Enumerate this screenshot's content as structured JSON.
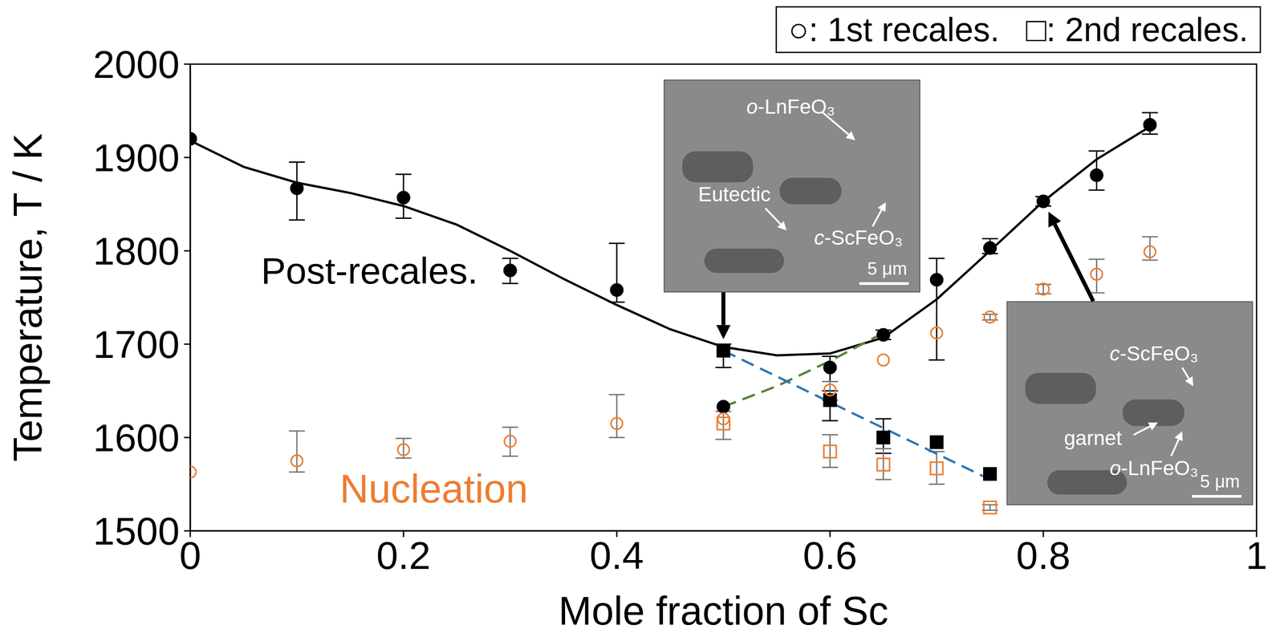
{
  "chart_data": {
    "type": "scatter",
    "x_label": "Mole fraction of Sc",
    "y_label": "Temperature, T / K",
    "xlim": [
      0,
      1
    ],
    "ylim": [
      1500,
      2000
    ],
    "xticks": [
      0,
      0.2,
      0.4,
      0.6,
      0.8,
      1
    ],
    "yticks": [
      1500,
      1600,
      1700,
      1800,
      1900,
      2000
    ],
    "grid": false,
    "legend": "top right",
    "legend_entries": [
      "○: 1st recales.",
      "□: 2nd recales."
    ],
    "annotations": [
      {
        "text": "Post-recales.",
        "color": "#000000"
      },
      {
        "text": "Nucleation",
        "color": "#ED7D31"
      }
    ],
    "insets": [
      {
        "labels": [
          "o-LnFeO₃",
          "Eutectic",
          "c-ScFeO₃"
        ],
        "scale_bar": "5 μm",
        "arrow_to": [
          0.5,
          1693
        ]
      },
      {
        "labels": [
          "c-ScFeO₃",
          "garnet",
          "o-LnFeO₃"
        ],
        "scale_bar": "5 μm",
        "arrow_to": [
          0.8,
          1853
        ]
      }
    ],
    "series": [
      {
        "type": "line",
        "line_style": "solid",
        "color": "#000000",
        "x": [
          0,
          0.05,
          0.1,
          0.15,
          0.2,
          0.25,
          0.3,
          0.35,
          0.4,
          0.45,
          0.5,
          0.55,
          0.6,
          0.65,
          0.7,
          0.75,
          0.8,
          0.85,
          0.9
        ],
        "values": [
          1918,
          1890,
          1873,
          1862,
          1848,
          1828,
          1800,
          1770,
          1742,
          1716,
          1697,
          1688,
          1690,
          1707,
          1748,
          1800,
          1853,
          1898,
          1933
        ]
      },
      {
        "type": "line",
        "line_style": "dashed",
        "color": "#548235",
        "x": [
          0.5,
          0.55,
          0.6,
          0.65
        ],
        "values": [
          1633,
          1655,
          1682,
          1712
        ]
      },
      {
        "type": "line",
        "line_style": "dashed",
        "color": "#2E75B6",
        "x": [
          0.5,
          0.75
        ],
        "values": [
          1693,
          1555
        ]
      },
      {
        "type": "scatter",
        "marker": "filled circle",
        "color": "#000000",
        "x": [
          0,
          0.1,
          0.2,
          0.3,
          0.4,
          0.5,
          0.6,
          0.65,
          0.7,
          0.75,
          0.8,
          0.85,
          0.9
        ],
        "values": [
          1920,
          1867,
          1857,
          1779,
          1758,
          1633,
          1675,
          1710,
          1769,
          1803,
          1853,
          1881,
          1935
        ],
        "errors": [
          null,
          [
            34,
            28
          ],
          [
            22,
            25
          ],
          [
            14,
            13
          ],
          [
            13,
            50
          ],
          null,
          [
            15,
            12
          ],
          [
            5,
            5
          ],
          [
            86,
            23
          ],
          [
            6,
            10
          ],
          [
            5,
            5
          ],
          [
            16,
            26
          ],
          [
            10,
            13
          ]
        ]
      },
      {
        "type": "scatter",
        "marker": "filled square",
        "color": "#000000",
        "x": [
          0.5,
          0.6,
          0.65,
          0.7,
          0.75
        ],
        "values": [
          1693,
          1640,
          1600,
          1595,
          1561
        ],
        "errors": [
          [
            18,
            7
          ],
          [
            22,
            10
          ],
          [
            17,
            20
          ],
          null,
          null
        ]
      },
      {
        "type": "scatter",
        "marker": "open circle",
        "color": "#ED7D31",
        "x": [
          0,
          0.1,
          0.2,
          0.3,
          0.4,
          0.5,
          0.6,
          0.65,
          0.7,
          0.75,
          0.8,
          0.85,
          0.9
        ],
        "values": [
          1563,
          1575,
          1587,
          1596,
          1615,
          1620,
          1651,
          1683,
          1712,
          1729,
          1759,
          1775,
          1799
        ],
        "errors": [
          null,
          [
            12,
            32
          ],
          [
            9,
            12
          ],
          [
            16,
            15
          ],
          [
            15,
            31
          ],
          [
            22,
            8
          ],
          [
            11,
            9
          ],
          null,
          null,
          [
            3,
            3
          ],
          [
            5,
            5
          ],
          [
            20,
            16
          ],
          [
            9,
            16
          ]
        ]
      },
      {
        "type": "scatter",
        "marker": "open square",
        "color": "#ED7D31",
        "x": [
          0.5,
          0.6,
          0.65,
          0.7,
          0.75
        ],
        "values": [
          1615,
          1585,
          1571,
          1567,
          1525
        ],
        "errors": [
          null,
          [
            17,
            18
          ],
          [
            16,
            17
          ],
          [
            17,
            18
          ],
          [
            3,
            3
          ]
        ]
      }
    ]
  }
}
